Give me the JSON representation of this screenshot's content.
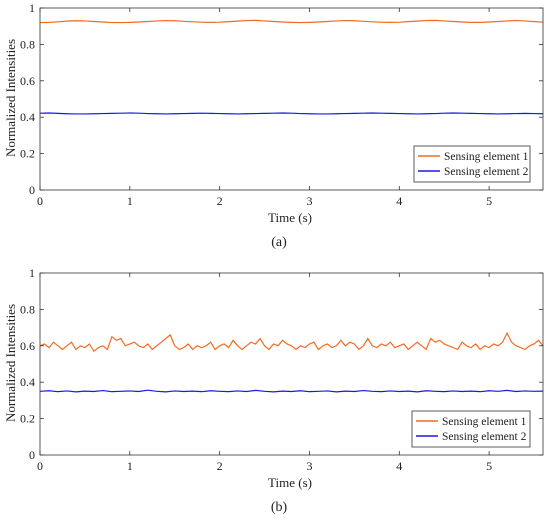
{
  "chart_data": [
    {
      "type": "line",
      "panel_label": "(a)",
      "xlabel": "Time (s)",
      "ylabel": "Normalized Intensities",
      "xlim": [
        0,
        5.6
      ],
      "ylim": [
        0,
        1
      ],
      "xticks": [
        "0",
        "1",
        "2",
        "3",
        "4",
        "5"
      ],
      "yticks": [
        "0",
        "0.2",
        "0.4",
        "0.6",
        "0.8",
        "1"
      ],
      "legend_position": "lower-right",
      "series": [
        {
          "name": "Sensing element 1",
          "color": "#F26B21",
          "x": [
            0,
            0.1,
            0.2,
            0.3,
            0.4,
            0.5,
            0.6,
            0.7,
            0.8,
            0.9,
            1.0,
            1.1,
            1.2,
            1.3,
            1.4,
            1.5,
            1.6,
            1.7,
            1.8,
            1.9,
            2.0,
            2.1,
            2.2,
            2.3,
            2.4,
            2.5,
            2.6,
            2.7,
            2.8,
            2.9,
            3.0,
            3.1,
            3.2,
            3.3,
            3.4,
            3.5,
            3.6,
            3.7,
            3.8,
            3.9,
            4.0,
            4.1,
            4.2,
            4.3,
            4.4,
            4.5,
            4.6,
            4.7,
            4.8,
            4.9,
            5.0,
            5.1,
            5.2,
            5.3,
            5.4,
            5.5,
            5.6
          ],
          "values": [
            0.92,
            0.921,
            0.924,
            0.928,
            0.93,
            0.929,
            0.926,
            0.923,
            0.92,
            0.92,
            0.921,
            0.923,
            0.926,
            0.929,
            0.931,
            0.93,
            0.927,
            0.924,
            0.922,
            0.921,
            0.922,
            0.925,
            0.928,
            0.931,
            0.932,
            0.929,
            0.926,
            0.923,
            0.921,
            0.92,
            0.921,
            0.923,
            0.926,
            0.929,
            0.931,
            0.93,
            0.927,
            0.924,
            0.922,
            0.921,
            0.922,
            0.925,
            0.928,
            0.931,
            0.932,
            0.929,
            0.926,
            0.923,
            0.921,
            0.921,
            0.923,
            0.926,
            0.929,
            0.931,
            0.929,
            0.925,
            0.922
          ]
        },
        {
          "name": "Sensing element 2",
          "color": "#1A1AE6",
          "x": [
            0,
            0.1,
            0.2,
            0.3,
            0.4,
            0.5,
            0.6,
            0.7,
            0.8,
            0.9,
            1.0,
            1.1,
            1.2,
            1.3,
            1.4,
            1.5,
            1.6,
            1.7,
            1.8,
            1.9,
            2.0,
            2.1,
            2.2,
            2.3,
            2.4,
            2.5,
            2.6,
            2.7,
            2.8,
            2.9,
            3.0,
            3.1,
            3.2,
            3.3,
            3.4,
            3.5,
            3.6,
            3.7,
            3.8,
            3.9,
            4.0,
            4.1,
            4.2,
            4.3,
            4.4,
            4.5,
            4.6,
            4.7,
            4.8,
            4.9,
            5.0,
            5.1,
            5.2,
            5.3,
            5.4,
            5.5,
            5.6
          ],
          "values": [
            0.422,
            0.423,
            0.421,
            0.419,
            0.418,
            0.418,
            0.419,
            0.42,
            0.421,
            0.422,
            0.423,
            0.422,
            0.42,
            0.419,
            0.418,
            0.419,
            0.42,
            0.421,
            0.422,
            0.421,
            0.42,
            0.419,
            0.418,
            0.419,
            0.42,
            0.421,
            0.422,
            0.423,
            0.422,
            0.42,
            0.419,
            0.418,
            0.418,
            0.419,
            0.42,
            0.421,
            0.422,
            0.423,
            0.422,
            0.421,
            0.42,
            0.419,
            0.418,
            0.419,
            0.42,
            0.422,
            0.423,
            0.422,
            0.421,
            0.42,
            0.419,
            0.418,
            0.419,
            0.42,
            0.421,
            0.42,
            0.419
          ]
        }
      ]
    },
    {
      "type": "line",
      "panel_label": "(b)",
      "xlabel": "Time (s)",
      "ylabel": "Normalized Intensities",
      "xlim": [
        0,
        5.6
      ],
      "ylim": [
        0,
        1
      ],
      "xticks": [
        "0",
        "1",
        "2",
        "3",
        "4",
        "5"
      ],
      "yticks": [
        "0",
        "0.2",
        "0.4",
        "0.6",
        "0.8",
        "1"
      ],
      "legend_position": "lower-right",
      "series": [
        {
          "name": "Sensing element 1",
          "color": "#F26B21",
          "x": [
            0,
            0.05,
            0.1,
            0.15,
            0.2,
            0.25,
            0.3,
            0.35,
            0.4,
            0.45,
            0.5,
            0.55,
            0.6,
            0.65,
            0.7,
            0.75,
            0.8,
            0.85,
            0.9,
            0.95,
            1.0,
            1.05,
            1.1,
            1.15,
            1.2,
            1.25,
            1.3,
            1.35,
            1.4,
            1.45,
            1.5,
            1.55,
            1.6,
            1.65,
            1.7,
            1.75,
            1.8,
            1.85,
            1.9,
            1.95,
            2.0,
            2.05,
            2.1,
            2.15,
            2.2,
            2.25,
            2.3,
            2.35,
            2.4,
            2.45,
            2.5,
            2.55,
            2.6,
            2.65,
            2.7,
            2.75,
            2.8,
            2.85,
            2.9,
            2.95,
            3.0,
            3.05,
            3.1,
            3.15,
            3.2,
            3.25,
            3.3,
            3.35,
            3.4,
            3.45,
            3.5,
            3.55,
            3.6,
            3.65,
            3.7,
            3.75,
            3.8,
            3.85,
            3.9,
            3.95,
            4.0,
            4.05,
            4.1,
            4.15,
            4.2,
            4.25,
            4.3,
            4.35,
            4.4,
            4.45,
            4.5,
            4.55,
            4.6,
            4.65,
            4.7,
            4.75,
            4.8,
            4.85,
            4.9,
            4.95,
            5.0,
            5.05,
            5.1,
            5.15,
            5.2,
            5.25,
            5.3,
            5.35,
            5.4,
            5.45,
            5.5,
            5.55,
            5.6
          ],
          "values": [
            0.6,
            0.61,
            0.59,
            0.62,
            0.6,
            0.58,
            0.6,
            0.62,
            0.58,
            0.6,
            0.59,
            0.61,
            0.57,
            0.59,
            0.6,
            0.58,
            0.65,
            0.63,
            0.64,
            0.6,
            0.61,
            0.62,
            0.6,
            0.59,
            0.61,
            0.58,
            0.6,
            0.62,
            0.64,
            0.66,
            0.6,
            0.58,
            0.59,
            0.61,
            0.58,
            0.6,
            0.59,
            0.6,
            0.62,
            0.58,
            0.6,
            0.61,
            0.59,
            0.63,
            0.6,
            0.58,
            0.6,
            0.62,
            0.61,
            0.64,
            0.6,
            0.58,
            0.61,
            0.6,
            0.63,
            0.61,
            0.6,
            0.58,
            0.6,
            0.59,
            0.61,
            0.62,
            0.58,
            0.6,
            0.61,
            0.59,
            0.6,
            0.63,
            0.6,
            0.62,
            0.61,
            0.58,
            0.6,
            0.64,
            0.6,
            0.59,
            0.61,
            0.6,
            0.62,
            0.59,
            0.6,
            0.61,
            0.58,
            0.6,
            0.62,
            0.6,
            0.58,
            0.64,
            0.62,
            0.63,
            0.61,
            0.6,
            0.59,
            0.58,
            0.62,
            0.6,
            0.59,
            0.61,
            0.58,
            0.6,
            0.59,
            0.61,
            0.6,
            0.62,
            0.67,
            0.62,
            0.6,
            0.59,
            0.58,
            0.6,
            0.61,
            0.63,
            0.6
          ]
        },
        {
          "name": "Sensing element 2",
          "color": "#1A1AE6",
          "x": [
            0,
            0.1,
            0.2,
            0.3,
            0.4,
            0.5,
            0.6,
            0.7,
            0.8,
            0.9,
            1.0,
            1.1,
            1.2,
            1.3,
            1.4,
            1.5,
            1.6,
            1.7,
            1.8,
            1.9,
            2.0,
            2.1,
            2.2,
            2.3,
            2.4,
            2.5,
            2.6,
            2.7,
            2.8,
            2.9,
            3.0,
            3.1,
            3.2,
            3.3,
            3.4,
            3.5,
            3.6,
            3.7,
            3.8,
            3.9,
            4.0,
            4.1,
            4.2,
            4.3,
            4.4,
            4.5,
            4.6,
            4.7,
            4.8,
            4.9,
            5.0,
            5.1,
            5.2,
            5.3,
            5.4,
            5.5,
            5.6
          ],
          "values": [
            0.35,
            0.353,
            0.348,
            0.352,
            0.347,
            0.351,
            0.349,
            0.354,
            0.348,
            0.35,
            0.352,
            0.349,
            0.356,
            0.35,
            0.347,
            0.352,
            0.349,
            0.351,
            0.348,
            0.353,
            0.35,
            0.348,
            0.352,
            0.349,
            0.355,
            0.35,
            0.347,
            0.351,
            0.349,
            0.353,
            0.348,
            0.35,
            0.352,
            0.347,
            0.351,
            0.349,
            0.354,
            0.35,
            0.348,
            0.352,
            0.349,
            0.351,
            0.347,
            0.353,
            0.35,
            0.348,
            0.352,
            0.349,
            0.351,
            0.348,
            0.353,
            0.35,
            0.355,
            0.349,
            0.352,
            0.35,
            0.351
          ]
        }
      ]
    }
  ]
}
